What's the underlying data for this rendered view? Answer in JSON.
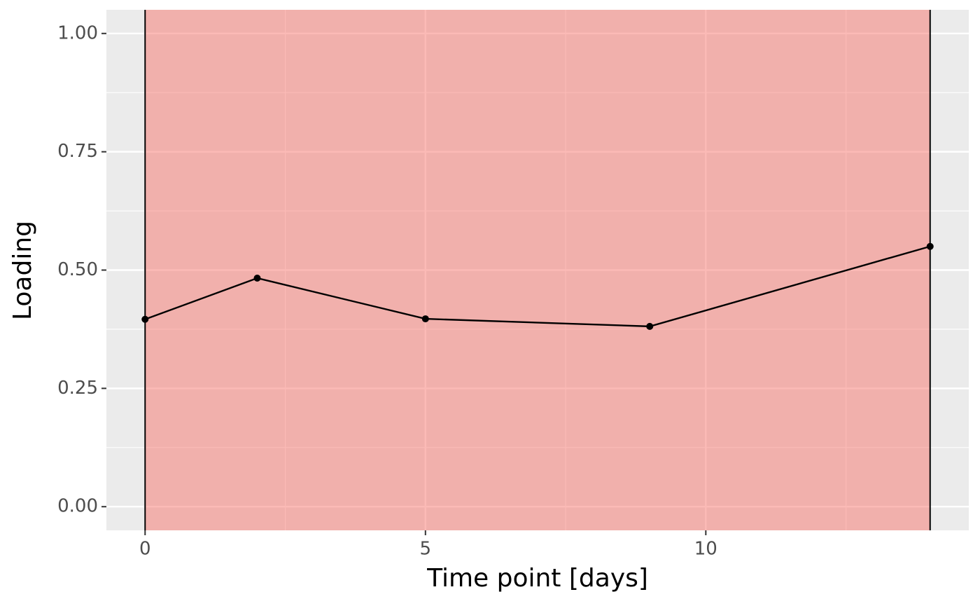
{
  "chart_data": {
    "type": "line",
    "x_label": "Time point [days]",
    "y_label": "Loading",
    "x": [
      0,
      2,
      5,
      9,
      14
    ],
    "series": [
      {
        "color": "#000000",
        "values": [
          0.396,
          0.483,
          0.397,
          0.381,
          0.55
        ]
      }
    ],
    "shade": {
      "x": [
        0,
        14
      ],
      "color": "#f8766d",
      "opacity": 0.5,
      "border": "#000000"
    },
    "xlim": [
      -0.69,
      14.69
    ],
    "ylim": [
      -0.05,
      1.05
    ],
    "xticks": [
      0,
      5,
      10
    ],
    "xminor": [
      2.5,
      7.5,
      12.5
    ],
    "yticks": [
      {
        "value": 0,
        "label": "0.00"
      },
      {
        "value": 0.25,
        "label": "0.25"
      },
      {
        "value": 0.5,
        "label": "0.50"
      },
      {
        "value": 0.75,
        "label": "0.75"
      },
      {
        "value": 1,
        "label": "1.00"
      }
    ],
    "yminor": [
      0.125,
      0.375,
      0.625,
      0.875
    ],
    "grid": true,
    "panel_color": "#ebebeb"
  }
}
